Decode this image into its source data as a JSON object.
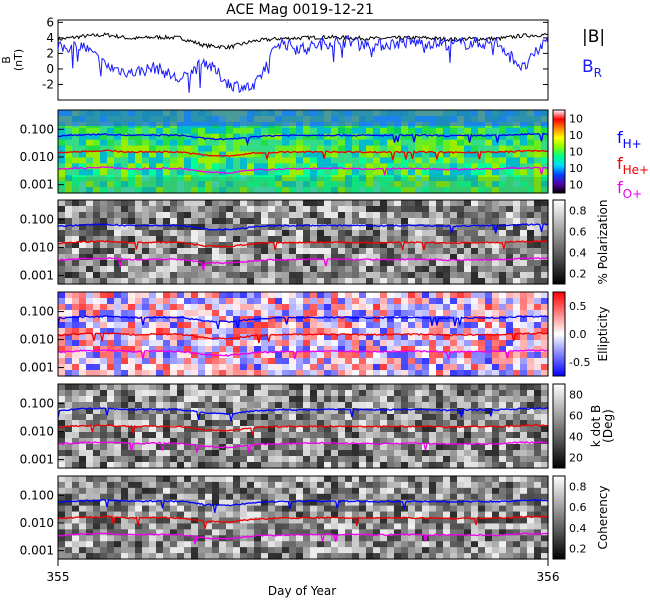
{
  "title": "ACE Mag 0019-12-21",
  "xlabel": "Day of Year",
  "x_ticks": [
    "355",
    "356"
  ],
  "x_range": [
    355,
    356
  ],
  "colors": {
    "btotal": "#000000",
    "br": "#1a1aff",
    "h": "#0000ff",
    "he": "#ee0000",
    "o": "#ee00ee"
  },
  "legend": {
    "btotal_label": "|B|",
    "br_label": "B",
    "br_sub": "R",
    "fh_label": "f",
    "fh_sub": "H+",
    "fhe_label": "f",
    "fhe_sub": "He+",
    "fo_label": "f",
    "fo_sub": "O+"
  },
  "chart_data": [
    {
      "type": "line",
      "panel": "magnetic field",
      "ylabel": "B",
      "yunit": "(nT)",
      "yticks": [
        "-2",
        "0",
        "2",
        "4",
        "6"
      ],
      "ylim": [
        -4,
        6.3
      ],
      "x": [
        355.0,
        355.05,
        355.1,
        355.15,
        355.2,
        355.25,
        355.3,
        355.35,
        355.4,
        355.45,
        355.5,
        355.55,
        355.6,
        355.65,
        355.7,
        355.75,
        355.8,
        355.85,
        355.9,
        355.95,
        356.0
      ],
      "series": [
        {
          "name": "|B|",
          "values": [
            3.8,
            4.2,
            4.4,
            3.9,
            4.1,
            4.0,
            3.0,
            2.8,
            3.6,
            3.9,
            4.0,
            4.1,
            4.0,
            3.9,
            4.0,
            4.0,
            3.8,
            3.9,
            3.9,
            4.3,
            4.4
          ]
        },
        {
          "name": "B",
          "values": [
            2.7,
            3.0,
            0.3,
            -0.5,
            0.2,
            -1.5,
            1.0,
            -2.0,
            -2.5,
            3.5,
            2.6,
            3.4,
            3.6,
            3.0,
            3.4,
            3.4,
            3.2,
            3.3,
            3.3,
            0.0,
            4.0
          ]
        }
      ]
    },
    {
      "type": "heatmap",
      "panel": "power spectrum",
      "yscale": "log",
      "ylim": [
        0.0005,
        0.5
      ],
      "yticks": [
        "0.001",
        "0.010",
        "0.100"
      ],
      "colorbar_ticks": [
        "10",
        "10",
        "10",
        "10",
        "10"
      ],
      "colorbar_colors": [
        "#ffffff",
        "#ff0000",
        "#ff8800",
        "#ffff00",
        "#88ff00",
        "#00ff88",
        "#00ddff",
        "#0044ff",
        "#5500aa",
        "#000000"
      ]
    },
    {
      "type": "heatmap",
      "panel": "polarization",
      "yscale": "log",
      "ylim": [
        0.0005,
        0.5
      ],
      "yticks": [
        "0.001",
        "0.010",
        "0.100"
      ],
      "colorbar_label": "% Polarization",
      "colorbar_ticks": [
        "0.2",
        "0.4",
        "0.6",
        "0.8"
      ],
      "colorbar_colors": [
        "#ffffff",
        "#000000"
      ]
    },
    {
      "type": "heatmap",
      "panel": "ellipticity",
      "yscale": "log",
      "ylim": [
        0.0005,
        0.5
      ],
      "yticks": [
        "0.001",
        "0.010",
        "0.100"
      ],
      "colorbar_label": "Ellipticity",
      "colorbar_ticks": [
        "-0.5",
        "0.0",
        "0.5"
      ],
      "colorbar_colors": [
        "#ff0000",
        "#ffffff",
        "#0000ff"
      ]
    },
    {
      "type": "heatmap",
      "panel": "wave normal angle",
      "yscale": "log",
      "ylim": [
        0.0005,
        0.5
      ],
      "yticks": [
        "0.001",
        "0.010",
        "0.100"
      ],
      "colorbar_label": "k dot B",
      "colorbar_unit": "(Deg)",
      "colorbar_ticks": [
        "20",
        "40",
        "60",
        "80"
      ],
      "colorbar_colors": [
        "#ffffff",
        "#000000"
      ]
    },
    {
      "type": "heatmap",
      "panel": "coherency",
      "yscale": "log",
      "ylim": [
        0.0005,
        0.5
      ],
      "yticks": [
        "0.001",
        "0.010",
        "0.100"
      ],
      "colorbar_label": "Coherency",
      "colorbar_ticks": [
        "0.2",
        "0.4",
        "0.6",
        "0.8"
      ],
      "colorbar_colors": [
        "#ffffff",
        "#000000"
      ]
    }
  ],
  "gyrofrequency_lines": {
    "x": [
      355.0,
      355.05,
      355.1,
      355.15,
      355.2,
      355.25,
      355.3,
      355.35,
      355.4,
      355.45,
      355.5,
      355.55,
      355.6,
      355.65,
      355.7,
      355.75,
      355.8,
      355.85,
      355.9,
      355.95,
      356.0
    ],
    "f_h": [
      0.058,
      0.064,
      0.067,
      0.06,
      0.062,
      0.061,
      0.046,
      0.043,
      0.055,
      0.06,
      0.061,
      0.062,
      0.061,
      0.06,
      0.061,
      0.061,
      0.058,
      0.06,
      0.06,
      0.066,
      0.067
    ],
    "f_he": [
      0.0145,
      0.016,
      0.0168,
      0.015,
      0.0155,
      0.0152,
      0.0115,
      0.0108,
      0.0138,
      0.015,
      0.0152,
      0.0155,
      0.0152,
      0.015,
      0.0152,
      0.0152,
      0.0145,
      0.015,
      0.015,
      0.0165,
      0.0168
    ],
    "f_o": [
      0.0036,
      0.004,
      0.0042,
      0.0037,
      0.0039,
      0.0038,
      0.0029,
      0.0027,
      0.0034,
      0.0037,
      0.0038,
      0.0039,
      0.0038,
      0.0037,
      0.0038,
      0.0038,
      0.0036,
      0.0037,
      0.0037,
      0.0041,
      0.0042
    ]
  }
}
